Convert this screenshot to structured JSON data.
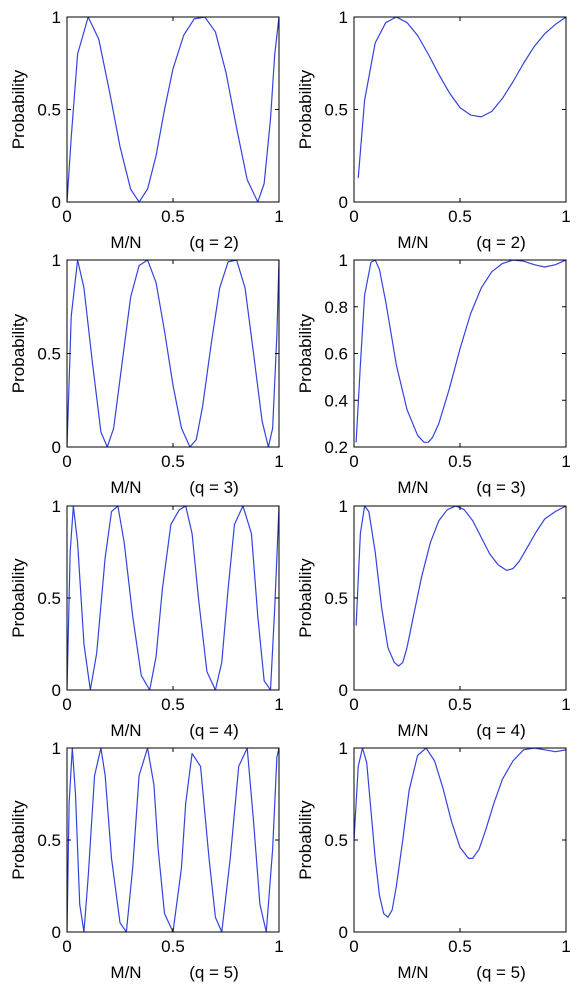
{
  "figure": {
    "background": "#ffffff",
    "line_color": "#3344dd"
  },
  "chart_data": [
    {
      "type": "line",
      "xlabel": "M/N",
      "ylabel": "Probability",
      "caption": "(q = 2)",
      "xlim": [
        0,
        1
      ],
      "ylim": [
        0,
        1
      ],
      "xticks": [
        "0",
        "0.5",
        "1"
      ],
      "yticks": [
        "0",
        "0.5",
        "1"
      ],
      "grid": false,
      "legend": "none",
      "series": [
        {
          "x": [
            0.0,
            0.02,
            0.05,
            0.1,
            0.15,
            0.2,
            0.25,
            0.3,
            0.34,
            0.38,
            0.42,
            0.46,
            0.5,
            0.55,
            0.6,
            0.65,
            0.7,
            0.75,
            0.8,
            0.85,
            0.9,
            0.93,
            0.96,
            0.98,
            1.0
          ],
          "y": [
            0.0,
            0.35,
            0.8,
            1.0,
            0.88,
            0.6,
            0.3,
            0.07,
            0.0,
            0.07,
            0.25,
            0.5,
            0.72,
            0.9,
            0.99,
            1.0,
            0.92,
            0.7,
            0.4,
            0.12,
            0.0,
            0.1,
            0.45,
            0.8,
            1.0
          ]
        }
      ]
    },
    {
      "type": "line",
      "xlabel": "M/N",
      "ylabel": "Probability",
      "caption": "(q = 2)",
      "xlim": [
        0,
        1
      ],
      "ylim": [
        0,
        1
      ],
      "xticks": [
        "0",
        "0.5",
        "1"
      ],
      "yticks": [
        "0",
        "0.5",
        "1"
      ],
      "grid": false,
      "legend": "none",
      "series": [
        {
          "x": [
            0.02,
            0.05,
            0.1,
            0.15,
            0.2,
            0.25,
            0.3,
            0.35,
            0.4,
            0.45,
            0.5,
            0.55,
            0.6,
            0.65,
            0.7,
            0.75,
            0.8,
            0.85,
            0.9,
            0.95,
            1.0
          ],
          "y": [
            0.13,
            0.55,
            0.86,
            0.97,
            1.0,
            0.97,
            0.9,
            0.8,
            0.69,
            0.59,
            0.51,
            0.47,
            0.46,
            0.49,
            0.56,
            0.65,
            0.75,
            0.84,
            0.91,
            0.96,
            1.0
          ]
        }
      ]
    },
    {
      "type": "line",
      "xlabel": "M/N",
      "ylabel": "Probability",
      "caption": "(q = 3)",
      "xlim": [
        0,
        1
      ],
      "ylim": [
        0,
        1
      ],
      "xticks": [
        "0",
        "0.5",
        "1"
      ],
      "yticks": [
        "0",
        "0.5",
        "1"
      ],
      "grid": false,
      "legend": "none",
      "series": [
        {
          "x": [
            0.0,
            0.02,
            0.05,
            0.08,
            0.12,
            0.16,
            0.19,
            0.22,
            0.26,
            0.3,
            0.34,
            0.38,
            0.42,
            0.46,
            0.5,
            0.54,
            0.58,
            0.61,
            0.64,
            0.68,
            0.72,
            0.76,
            0.8,
            0.84,
            0.88,
            0.92,
            0.95,
            0.97,
            0.99,
            1.0
          ],
          "y": [
            0.0,
            0.7,
            1.0,
            0.85,
            0.45,
            0.08,
            0.0,
            0.1,
            0.45,
            0.8,
            0.97,
            1.0,
            0.88,
            0.62,
            0.33,
            0.1,
            0.0,
            0.04,
            0.22,
            0.55,
            0.85,
            0.99,
            1.0,
            0.85,
            0.5,
            0.14,
            0.0,
            0.1,
            0.6,
            1.0
          ]
        }
      ]
    },
    {
      "type": "line",
      "xlabel": "M/N",
      "ylabel": "Probability",
      "caption": "(q = 3)",
      "xlim": [
        0,
        1
      ],
      "ylim": [
        0.2,
        1
      ],
      "xticks": [
        "0",
        "0.5",
        "1"
      ],
      "yticks": [
        "0.2",
        "0.4",
        "0.6",
        "0.8",
        "1"
      ],
      "grid": false,
      "legend": "none",
      "series": [
        {
          "x": [
            0.01,
            0.03,
            0.05,
            0.08,
            0.1,
            0.12,
            0.15,
            0.2,
            0.25,
            0.3,
            0.33,
            0.35,
            0.37,
            0.4,
            0.45,
            0.5,
            0.55,
            0.6,
            0.65,
            0.7,
            0.75,
            0.8,
            0.85,
            0.9,
            0.95,
            1.0
          ],
          "y": [
            0.22,
            0.55,
            0.85,
            0.99,
            1.0,
            0.96,
            0.82,
            0.55,
            0.36,
            0.25,
            0.22,
            0.22,
            0.24,
            0.3,
            0.45,
            0.62,
            0.77,
            0.88,
            0.95,
            0.985,
            1.0,
            0.995,
            0.98,
            0.97,
            0.98,
            1.0
          ]
        }
      ]
    },
    {
      "type": "line",
      "xlabel": "M/N",
      "ylabel": "Probability",
      "caption": "(q = 4)",
      "xlim": [
        0,
        1
      ],
      "ylim": [
        0,
        1
      ],
      "xticks": [
        "0",
        "0.5",
        "1"
      ],
      "yticks": [
        "0",
        "0.5",
        "1"
      ],
      "grid": false,
      "legend": "none",
      "series": [
        {
          "x": [
            0.0,
            0.015,
            0.03,
            0.05,
            0.08,
            0.11,
            0.14,
            0.18,
            0.21,
            0.24,
            0.27,
            0.31,
            0.35,
            0.39,
            0.42,
            0.45,
            0.49,
            0.53,
            0.56,
            0.59,
            0.62,
            0.66,
            0.7,
            0.73,
            0.76,
            0.79,
            0.83,
            0.87,
            0.9,
            0.93,
            0.96,
            0.98,
            1.0
          ],
          "y": [
            0.0,
            0.75,
            1.0,
            0.8,
            0.25,
            0.0,
            0.2,
            0.72,
            0.97,
            1.0,
            0.8,
            0.4,
            0.08,
            0.0,
            0.18,
            0.55,
            0.9,
            0.98,
            1.0,
            0.85,
            0.5,
            0.1,
            0.0,
            0.15,
            0.55,
            0.9,
            1.0,
            0.85,
            0.4,
            0.05,
            0.0,
            0.45,
            1.0
          ]
        }
      ]
    },
    {
      "type": "line",
      "xlabel": "M/N",
      "ylabel": "Probability",
      "caption": "(q = 4)",
      "xlim": [
        0,
        1
      ],
      "ylim": [
        0,
        1
      ],
      "xticks": [
        "0",
        "0.5",
        "1"
      ],
      "yticks": [
        "0",
        "0.5",
        "1"
      ],
      "grid": false,
      "legend": "none",
      "series": [
        {
          "x": [
            0.01,
            0.03,
            0.05,
            0.07,
            0.1,
            0.13,
            0.16,
            0.19,
            0.21,
            0.23,
            0.25,
            0.28,
            0.32,
            0.36,
            0.4,
            0.44,
            0.48,
            0.52,
            0.56,
            0.6,
            0.64,
            0.68,
            0.72,
            0.75,
            0.78,
            0.82,
            0.86,
            0.9,
            0.95,
            1.0
          ],
          "y": [
            0.35,
            0.85,
            1.0,
            0.97,
            0.75,
            0.45,
            0.23,
            0.15,
            0.13,
            0.15,
            0.23,
            0.4,
            0.62,
            0.8,
            0.92,
            0.98,
            1.0,
            0.98,
            0.92,
            0.83,
            0.74,
            0.68,
            0.65,
            0.66,
            0.7,
            0.78,
            0.86,
            0.93,
            0.97,
            1.0
          ]
        }
      ]
    },
    {
      "type": "line",
      "xlabel": "M/N",
      "ylabel": "Probability",
      "caption": "(q = 5)",
      "xlim": [
        0,
        1
      ],
      "ylim": [
        0,
        1
      ],
      "xticks": [
        "0",
        "0.5",
        "1"
      ],
      "yticks": [
        "0",
        "0.5",
        "1"
      ],
      "grid": false,
      "legend": "none",
      "series": [
        {
          "x": [
            0.0,
            0.01,
            0.025,
            0.04,
            0.06,
            0.08,
            0.1,
            0.13,
            0.16,
            0.18,
            0.21,
            0.25,
            0.28,
            0.31,
            0.34,
            0.38,
            0.41,
            0.43,
            0.46,
            0.5,
            0.54,
            0.56,
            0.59,
            0.63,
            0.67,
            0.7,
            0.73,
            0.77,
            0.81,
            0.85,
            0.88,
            0.91,
            0.94,
            0.97,
            0.99,
            1.0
          ],
          "y": [
            0.0,
            0.7,
            1.0,
            0.75,
            0.15,
            0.0,
            0.3,
            0.85,
            1.0,
            0.85,
            0.4,
            0.05,
            0.0,
            0.35,
            0.85,
            1.0,
            0.8,
            0.45,
            0.1,
            0.0,
            0.35,
            0.7,
            0.97,
            0.9,
            0.4,
            0.08,
            0.0,
            0.4,
            0.9,
            1.0,
            0.6,
            0.15,
            0.0,
            0.45,
            0.95,
            1.0
          ]
        }
      ]
    },
    {
      "type": "line",
      "xlabel": "M/N",
      "ylabel": "Probability",
      "caption": "(q = 5)",
      "xlim": [
        0,
        1
      ],
      "ylim": [
        0,
        1
      ],
      "xticks": [
        "0",
        "0.5",
        "1"
      ],
      "yticks": [
        "0",
        "0.5",
        "1"
      ],
      "grid": false,
      "legend": "none",
      "series": [
        {
          "x": [
            0.0,
            0.02,
            0.04,
            0.06,
            0.08,
            0.1,
            0.12,
            0.14,
            0.16,
            0.18,
            0.2,
            0.23,
            0.26,
            0.3,
            0.34,
            0.38,
            0.42,
            0.46,
            0.5,
            0.54,
            0.56,
            0.59,
            0.62,
            0.66,
            0.7,
            0.75,
            0.8,
            0.85,
            0.9,
            0.95,
            1.0
          ],
          "y": [
            0.5,
            0.9,
            1.0,
            0.92,
            0.66,
            0.4,
            0.2,
            0.1,
            0.08,
            0.12,
            0.25,
            0.5,
            0.77,
            0.96,
            1.0,
            0.93,
            0.78,
            0.6,
            0.46,
            0.4,
            0.4,
            0.45,
            0.55,
            0.7,
            0.83,
            0.93,
            0.99,
            1.0,
            0.99,
            0.98,
            0.99
          ]
        }
      ]
    }
  ]
}
